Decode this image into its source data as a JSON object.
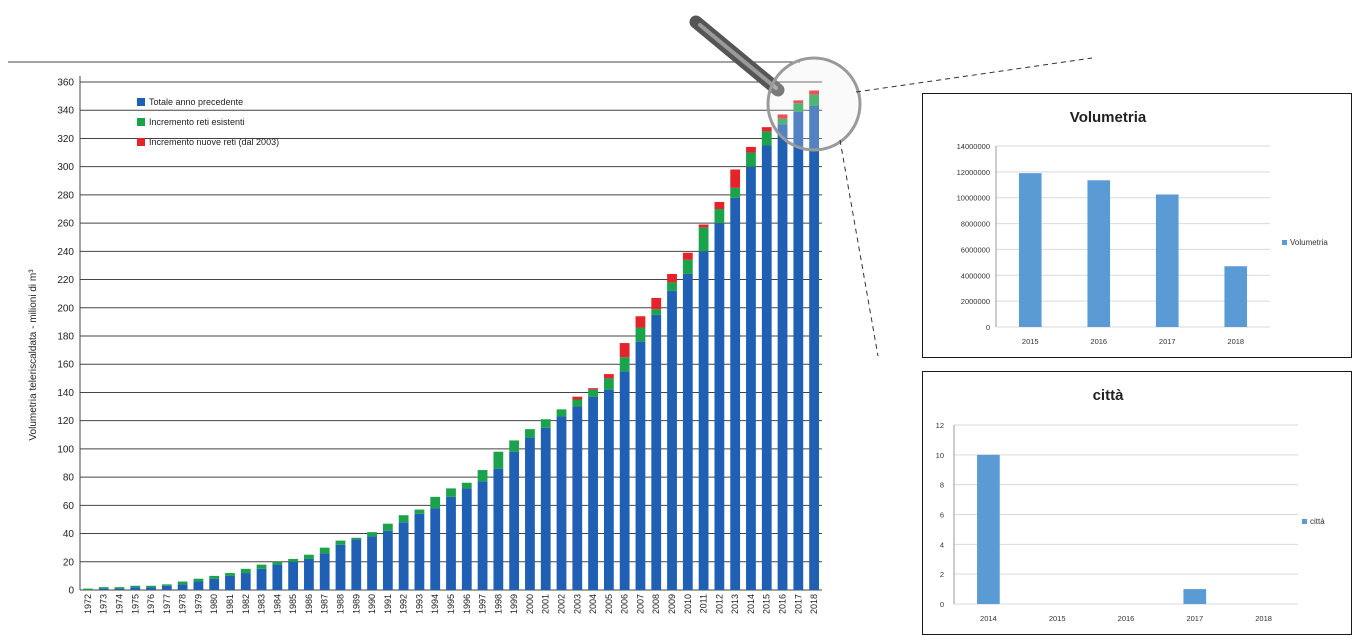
{
  "colors": {
    "blue": "#1f5fb4",
    "green": "#1aa34a",
    "red": "#e3242b",
    "small_bar": "#5b9bd5"
  },
  "chart_data": [
    {
      "type": "bar",
      "stacked": true,
      "title": "",
      "xlabel": "",
      "ylabel": "Volumetria teleriscaldata - milioni di m³",
      "ylim": [
        0,
        360
      ],
      "yticks": [
        0,
        20,
        40,
        60,
        80,
        100,
        120,
        140,
        160,
        180,
        200,
        220,
        240,
        260,
        280,
        300,
        320,
        340,
        360
      ],
      "grid": true,
      "legend_position": "top-left",
      "categories": [
        "1972",
        "1973",
        "1974",
        "1975",
        "1976",
        "1977",
        "1978",
        "1979",
        "1980",
        "1981",
        "1982",
        "1983",
        "1984",
        "1985",
        "1986",
        "1987",
        "1988",
        "1989",
        "1990",
        "1991",
        "1992",
        "1993",
        "1994",
        "1995",
        "1996",
        "1997",
        "1998",
        "1999",
        "2000",
        "2001",
        "2002",
        "2003",
        "2004",
        "2005",
        "2006",
        "2007",
        "2008",
        "2009",
        "2010",
        "2011",
        "2012",
        "2013",
        "2014",
        "2015",
        "2016",
        "2017",
        "2018"
      ],
      "series": [
        {
          "name": "Totale anno precedente",
          "values": [
            0,
            1,
            1,
            2,
            2,
            3,
            4,
            6,
            8,
            10,
            12,
            15,
            18,
            20,
            22,
            26,
            32,
            36,
            38,
            42,
            48,
            54,
            58,
            66,
            72,
            77,
            86,
            98,
            108,
            115,
            123,
            130,
            137,
            142,
            155,
            176,
            195,
            212,
            224,
            240,
            260,
            278,
            300,
            315,
            330,
            339,
            343
          ]
        },
        {
          "name": "Incremento reti esistenti",
          "values": [
            1,
            1,
            1,
            1,
            1,
            1,
            2,
            2,
            2,
            2,
            3,
            3,
            2,
            2,
            3,
            4,
            3,
            1,
            3,
            5,
            5,
            3,
            8,
            6,
            4,
            8,
            12,
            8,
            6,
            6,
            5,
            5,
            5,
            8,
            10,
            10,
            4,
            6,
            10,
            17,
            10,
            7,
            10,
            10,
            4,
            6,
            8
          ]
        },
        {
          "name": "Incremento nuove reti (dal 2003)",
          "values": [
            0,
            0,
            0,
            0,
            0,
            0,
            0,
            0,
            0,
            0,
            0,
            0,
            0,
            0,
            0,
            0,
            0,
            0,
            0,
            0,
            0,
            0,
            0,
            0,
            0,
            0,
            0,
            0,
            0,
            0,
            0,
            2,
            1,
            3,
            10,
            8,
            8,
            6,
            5,
            2,
            5,
            13,
            4,
            3,
            3,
            2,
            3
          ]
        }
      ]
    },
    {
      "type": "bar",
      "title": "Volumetria",
      "categories": [
        "2015",
        "2016",
        "2017",
        "2018"
      ],
      "series": [
        {
          "name": "Volumetria",
          "values": [
            11900000,
            11350000,
            10250000,
            4700000
          ]
        }
      ],
      "ylim": [
        0,
        14000000
      ],
      "yticks": [
        "0",
        "2000000",
        "4000000",
        "6000000",
        "8000000",
        "10000000",
        "12000000",
        "14000000"
      ],
      "legend_position": "right"
    },
    {
      "type": "bar",
      "title": "città",
      "categories": [
        "2014",
        "2015",
        "2016",
        "2017",
        "2018"
      ],
      "series": [
        {
          "name": "città",
          "values": [
            10,
            0,
            0,
            1,
            0
          ]
        }
      ],
      "ylim": [
        0,
        12
      ],
      "yticks": [
        "0",
        "2",
        "4",
        "6",
        "8",
        "10",
        "12"
      ],
      "legend_position": "right"
    }
  ]
}
